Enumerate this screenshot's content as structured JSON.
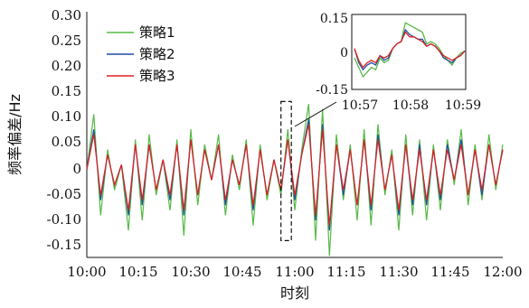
{
  "chart_data": [
    {
      "type": "line",
      "xlabel": "时刻",
      "ylabel": "频率偏差/Hz",
      "x_ticks": [
        "10:00",
        "10:15",
        "10:30",
        "10:45",
        "11:00",
        "11:15",
        "11:30",
        "11:45",
        "12:00"
      ],
      "y_ticks": [
        "0.30",
        "0.25",
        "0.20",
        "0.15",
        "0.10",
        "0.05",
        "0",
        "-0.05",
        "-0.10",
        "-0.15"
      ],
      "xlim": [
        "10:00",
        "12:00"
      ],
      "ylim": [
        -0.18,
        0.3
      ],
      "grid": false,
      "legend": "top-left",
      "highlight_box": {
        "x": [
          "10:56",
          "10:59"
        ],
        "y": [
          -0.14,
          0.135
        ]
      },
      "series": [
        {
          "name": "策略1",
          "color": "#56b947",
          "values": [
            0,
            0.11,
            -0.09,
            0.04,
            -0.04,
            0.01,
            -0.12,
            0.06,
            -0.1,
            0.07,
            -0.05,
            0.02,
            -0.08,
            0.06,
            -0.13,
            0.08,
            -0.07,
            0.05,
            -0.02,
            0.07,
            -0.09,
            0.03,
            -0.04,
            0.06,
            -0.11,
            0.05,
            -0.06,
            0.02,
            -0.05,
            0.08,
            -0.08,
            0.04,
            0.13,
            -0.14,
            0.12,
            -0.17,
            0.07,
            -0.06,
            0.05,
            -0.1,
            0.08,
            -0.11,
            0.09,
            -0.05,
            0.04,
            -0.12,
            0.07,
            -0.09,
            0.06,
            -0.1,
            0.05,
            -0.08,
            0.06,
            -0.03,
            0.08,
            -0.07,
            0.05,
            -0.06,
            0.07,
            -0.04,
            0.05
          ]
        },
        {
          "name": "策略2",
          "color": "#1f4fa0",
          "values": [
            0,
            0.08,
            -0.06,
            0.03,
            -0.03,
            0.01,
            -0.09,
            0.05,
            -0.07,
            0.05,
            -0.04,
            0.02,
            -0.06,
            0.05,
            -0.09,
            0.06,
            -0.05,
            0.04,
            -0.02,
            0.05,
            -0.07,
            0.02,
            -0.03,
            0.05,
            -0.08,
            0.04,
            -0.05,
            0.02,
            -0.04,
            0.06,
            -0.06,
            0.03,
            0.1,
            -0.1,
            0.09,
            -0.12,
            0.05,
            -0.05,
            0.04,
            -0.07,
            0.06,
            -0.08,
            0.07,
            -0.04,
            0.03,
            -0.09,
            0.05,
            -0.07,
            0.05,
            -0.07,
            0.04,
            -0.06,
            0.05,
            -0.02,
            0.06,
            -0.05,
            0.04,
            -0.05,
            0.05,
            -0.03,
            0.04
          ]
        },
        {
          "name": "策略3",
          "color": "#e02020",
          "values": [
            0,
            0.07,
            -0.05,
            0.03,
            -0.03,
            0.01,
            -0.08,
            0.05,
            -0.06,
            0.05,
            -0.04,
            0.02,
            -0.05,
            0.05,
            -0.08,
            0.06,
            -0.05,
            0.04,
            -0.02,
            0.05,
            -0.06,
            0.02,
            -0.03,
            0.05,
            -0.07,
            0.04,
            -0.05,
            0.02,
            -0.04,
            0.06,
            -0.05,
            0.03,
            0.09,
            -0.09,
            0.08,
            -0.11,
            0.05,
            -0.04,
            0.04,
            -0.07,
            0.06,
            -0.07,
            0.06,
            -0.04,
            0.03,
            -0.08,
            0.05,
            -0.06,
            0.04,
            -0.06,
            0.04,
            -0.05,
            0.04,
            -0.02,
            0.05,
            -0.05,
            0.04,
            -0.04,
            0.05,
            -0.03,
            0.04
          ]
        }
      ]
    },
    {
      "type": "line",
      "x_ticks": [
        "10:57",
        "10:58",
        "10:59"
      ],
      "y_ticks": [
        "0.15",
        "0",
        "-0.15"
      ],
      "ylim": [
        -0.15,
        0.15
      ],
      "grid": false,
      "series": [
        {
          "name": "策略1",
          "color": "#56b947",
          "values": [
            -0.02,
            -0.06,
            -0.1,
            -0.08,
            -0.06,
            -0.07,
            -0.02,
            -0.04,
            -0.03,
            0.02,
            0.04,
            0.05,
            0.13,
            0.12,
            0.11,
            0.1,
            0.09,
            0.04,
            0.05,
            0.04,
            0.02,
            -0.01,
            -0.03,
            -0.05,
            -0.02,
            0.0,
            0.01
          ]
        },
        {
          "name": "策略2",
          "color": "#1f4fa0",
          "values": [
            0.02,
            -0.04,
            -0.07,
            -0.05,
            -0.04,
            -0.05,
            -0.01,
            -0.03,
            -0.02,
            0.02,
            0.04,
            0.05,
            0.1,
            0.08,
            0.07,
            0.06,
            0.06,
            0.03,
            0.04,
            0.03,
            0.01,
            -0.02,
            -0.03,
            -0.04,
            -0.02,
            -0.01,
            0.01
          ]
        },
        {
          "name": "策略3",
          "color": "#e02020",
          "values": [
            0.02,
            -0.03,
            -0.06,
            -0.04,
            -0.03,
            -0.04,
            -0.01,
            -0.02,
            -0.01,
            0.02,
            0.04,
            0.05,
            0.09,
            0.07,
            0.07,
            0.06,
            0.05,
            0.03,
            0.04,
            0.03,
            0.01,
            -0.01,
            -0.02,
            -0.03,
            -0.02,
            -0.01,
            0.01
          ]
        }
      ]
    }
  ]
}
